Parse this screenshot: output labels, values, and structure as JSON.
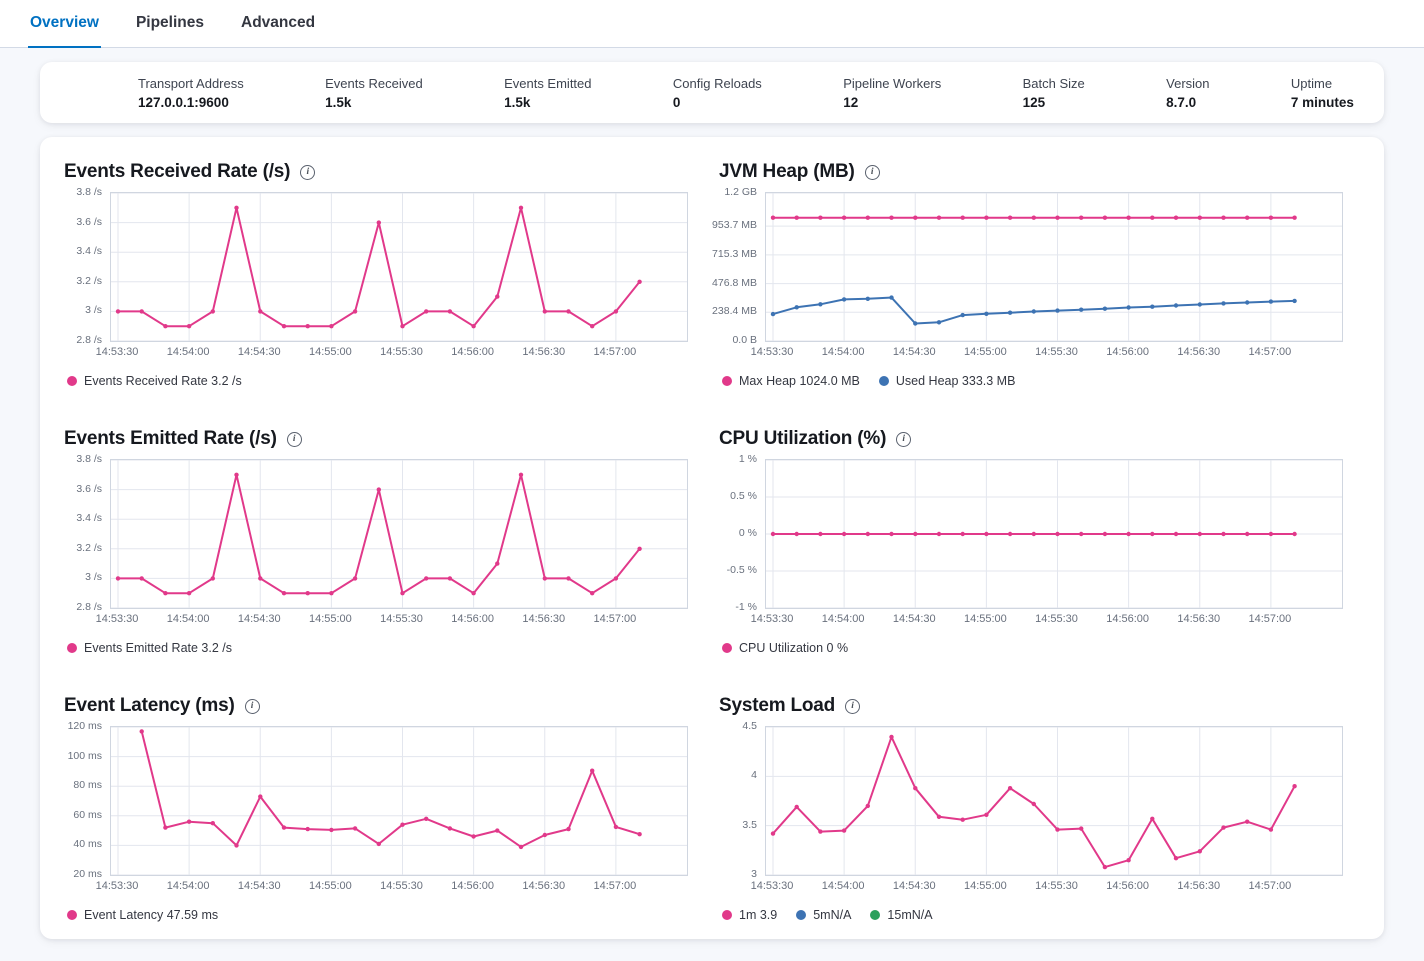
{
  "tabs": [
    {
      "label": "Overview",
      "active": true
    },
    {
      "label": "Pipelines",
      "active": false
    },
    {
      "label": "Advanced",
      "active": false
    }
  ],
  "stats": [
    {
      "label": "Transport Address",
      "value": "127.0.0.1:9600"
    },
    {
      "label": "Events Received",
      "value": "1.5k"
    },
    {
      "label": "Events Emitted",
      "value": "1.5k"
    },
    {
      "label": "Config Reloads",
      "value": "0"
    },
    {
      "label": "Pipeline Workers",
      "value": "12"
    },
    {
      "label": "Batch Size",
      "value": "125"
    },
    {
      "label": "Version",
      "value": "8.7.0"
    },
    {
      "label": "Uptime",
      "value": "7 minutes"
    }
  ],
  "icons": {
    "info": "i"
  },
  "colors": {
    "accent_pink": "#e1398a",
    "series_blue": "#3d73b3",
    "series_green": "#2aa05c",
    "tab_active": "#0071c2",
    "gridline": "#e3e6ee",
    "plot_border": "#d0d6e0"
  },
  "chart_data": [
    {
      "type": "line",
      "title": "Events Received Rate (/s)",
      "ylim": [
        2.8,
        3.8
      ],
      "y_ticks": [
        {
          "value": 2.8,
          "label": "2.8 /s"
        },
        {
          "value": 3.0,
          "label": "3 /s"
        },
        {
          "value": 3.2,
          "label": "3.2 /s"
        },
        {
          "value": 3.4,
          "label": "3.4 /s"
        },
        {
          "value": 3.6,
          "label": "3.6 /s"
        },
        {
          "value": 3.8,
          "label": "3.8 /s"
        }
      ],
      "x_domain_seconds": [
        0,
        240
      ],
      "x_tick_seconds": [
        0,
        30,
        60,
        90,
        120,
        150,
        180,
        210
      ],
      "x_tick_labels": [
        "14:53:30",
        "14:54:00",
        "14:54:30",
        "14:55:00",
        "14:55:30",
        "14:56:00",
        "14:56:30",
        "14:57:00"
      ],
      "series": [
        {
          "name": "Events Received Rate",
          "color": "#e1398a",
          "x_seconds": [
            0,
            10,
            20,
            30,
            40,
            50,
            60,
            70,
            80,
            90,
            100,
            110,
            120,
            130,
            140,
            150,
            160,
            170,
            180,
            190,
            200,
            210,
            220
          ],
          "values": [
            3,
            3,
            2.9,
            2.9,
            3,
            3.7,
            3,
            2.9,
            2.9,
            2.9,
            3,
            3.6,
            2.9,
            3,
            3,
            2.9,
            3.1,
            3.7,
            3,
            3,
            2.9,
            3,
            3.2
          ]
        }
      ],
      "legend": [
        {
          "label": "Events Received Rate 3.2 /s",
          "color": "#e1398a"
        }
      ]
    },
    {
      "type": "line",
      "title": "JVM Heap (MB)",
      "ylim": [
        0,
        1228.8
      ],
      "y_ticks": [
        {
          "value": 0,
          "label": "0.0 B"
        },
        {
          "value": 238.4,
          "label": "238.4 MB"
        },
        {
          "value": 476.8,
          "label": "476.8 MB"
        },
        {
          "value": 715.3,
          "label": "715.3 MB"
        },
        {
          "value": 953.7,
          "label": "953.7 MB"
        },
        {
          "value": 1228.8,
          "label": "1.2 GB"
        }
      ],
      "x_domain_seconds": [
        0,
        240
      ],
      "x_tick_seconds": [
        0,
        30,
        60,
        90,
        120,
        150,
        180,
        210
      ],
      "x_tick_labels": [
        "14:53:30",
        "14:54:00",
        "14:54:30",
        "14:55:00",
        "14:55:30",
        "14:56:00",
        "14:56:30",
        "14:57:00"
      ],
      "series": [
        {
          "name": "Max Heap",
          "color": "#e1398a",
          "x_seconds": [
            0,
            10,
            20,
            30,
            40,
            50,
            60,
            70,
            80,
            90,
            100,
            110,
            120,
            130,
            140,
            150,
            160,
            170,
            180,
            190,
            200,
            210,
            220
          ],
          "values": 1024
        },
        {
          "name": "Used Heap",
          "color": "#3d73b3",
          "x_seconds": [
            0,
            10,
            20,
            30,
            40,
            50,
            60,
            70,
            80,
            90,
            100,
            110,
            120,
            130,
            140,
            150,
            160,
            170,
            180,
            190,
            200,
            210,
            220
          ],
          "values": [
            223,
            280,
            305,
            345,
            350,
            360,
            145,
            155,
            215,
            226,
            235,
            245,
            252,
            260,
            268,
            278,
            285,
            295,
            303,
            312,
            320,
            327,
            333
          ]
        }
      ],
      "legend": [
        {
          "label": "Max Heap 1024.0 MB",
          "color": "#e1398a"
        },
        {
          "label": "Used Heap 333.3 MB",
          "color": "#3d73b3"
        }
      ]
    },
    {
      "type": "line",
      "title": "Events Emitted Rate (/s)",
      "ylim": [
        2.8,
        3.8
      ],
      "y_ticks": [
        {
          "value": 2.8,
          "label": "2.8 /s"
        },
        {
          "value": 3.0,
          "label": "3 /s"
        },
        {
          "value": 3.2,
          "label": "3.2 /s"
        },
        {
          "value": 3.4,
          "label": "3.4 /s"
        },
        {
          "value": 3.6,
          "label": "3.6 /s"
        },
        {
          "value": 3.8,
          "label": "3.8 /s"
        }
      ],
      "x_domain_seconds": [
        0,
        240
      ],
      "x_tick_seconds": [
        0,
        30,
        60,
        90,
        120,
        150,
        180,
        210
      ],
      "x_tick_labels": [
        "14:53:30",
        "14:54:00",
        "14:54:30",
        "14:55:00",
        "14:55:30",
        "14:56:00",
        "14:56:30",
        "14:57:00"
      ],
      "series": [
        {
          "name": "Events Emitted Rate",
          "color": "#e1398a",
          "x_seconds": [
            0,
            10,
            20,
            30,
            40,
            50,
            60,
            70,
            80,
            90,
            100,
            110,
            120,
            130,
            140,
            150,
            160,
            170,
            180,
            190,
            200,
            210,
            220
          ],
          "values": [
            3,
            3,
            2.9,
            2.9,
            3,
            3.7,
            3,
            2.9,
            2.9,
            2.9,
            3,
            3.6,
            2.9,
            3,
            3,
            2.9,
            3.1,
            3.7,
            3,
            3,
            2.9,
            3,
            3.2
          ]
        }
      ],
      "legend": [
        {
          "label": "Events Emitted Rate 3.2 /s",
          "color": "#e1398a"
        }
      ]
    },
    {
      "type": "line",
      "title": "CPU Utilization (%)",
      "ylim": [
        -1,
        1
      ],
      "y_ticks": [
        {
          "value": -1,
          "label": "-1 %"
        },
        {
          "value": -0.5,
          "label": "-0.5 %"
        },
        {
          "value": 0,
          "label": "0 %"
        },
        {
          "value": 0.5,
          "label": "0.5 %"
        },
        {
          "value": 1,
          "label": "1 %"
        }
      ],
      "x_domain_seconds": [
        0,
        240
      ],
      "x_tick_seconds": [
        0,
        30,
        60,
        90,
        120,
        150,
        180,
        210
      ],
      "x_tick_labels": [
        "14:53:30",
        "14:54:00",
        "14:54:30",
        "14:55:00",
        "14:55:30",
        "14:56:00",
        "14:56:30",
        "14:57:00"
      ],
      "series": [
        {
          "name": "CPU Utilization",
          "color": "#e1398a",
          "x_seconds": [
            0,
            10,
            20,
            30,
            40,
            50,
            60,
            70,
            80,
            90,
            100,
            110,
            120,
            130,
            140,
            150,
            160,
            170,
            180,
            190,
            200,
            210,
            220
          ],
          "values": 0
        }
      ],
      "legend": [
        {
          "label": "CPU Utilization 0 %",
          "color": "#e1398a"
        }
      ]
    },
    {
      "type": "line",
      "title": "Event Latency (ms)",
      "ylim": [
        20,
        120
      ],
      "y_ticks": [
        {
          "value": 20,
          "label": "20 ms"
        },
        {
          "value": 40,
          "label": "40 ms"
        },
        {
          "value": 60,
          "label": "60 ms"
        },
        {
          "value": 80,
          "label": "80 ms"
        },
        {
          "value": 100,
          "label": "100 ms"
        },
        {
          "value": 120,
          "label": "120 ms"
        }
      ],
      "x_domain_seconds": [
        0,
        240
      ],
      "x_tick_seconds": [
        0,
        30,
        60,
        90,
        120,
        150,
        180,
        210
      ],
      "x_tick_labels": [
        "14:53:30",
        "14:54:00",
        "14:54:30",
        "14:55:00",
        "14:55:30",
        "14:56:00",
        "14:56:30",
        "14:57:00"
      ],
      "series": [
        {
          "name": "Event Latency",
          "color": "#e1398a",
          "x_seconds": [
            10,
            20,
            30,
            40,
            50,
            60,
            70,
            80,
            90,
            100,
            110,
            120,
            130,
            140,
            150,
            160,
            170,
            180,
            190,
            200,
            210,
            220
          ],
          "values": [
            117,
            52,
            56,
            55,
            40,
            73,
            52,
            51,
            50.5,
            51.5,
            41,
            54,
            58,
            51.5,
            46,
            50,
            39,
            47,
            51,
            90.5,
            52.5,
            47.59
          ]
        }
      ],
      "legend": [
        {
          "label": "Event Latency 47.59 ms",
          "color": "#e1398a"
        }
      ]
    },
    {
      "type": "line",
      "title": "System Load",
      "ylim": [
        3,
        4.5
      ],
      "y_ticks": [
        {
          "value": 3,
          "label": "3"
        },
        {
          "value": 3.5,
          "label": "3.5"
        },
        {
          "value": 4,
          "label": "4"
        },
        {
          "value": 4.5,
          "label": "4.5"
        }
      ],
      "x_domain_seconds": [
        0,
        240
      ],
      "x_tick_seconds": [
        0,
        30,
        60,
        90,
        120,
        150,
        180,
        210
      ],
      "x_tick_labels": [
        "14:53:30",
        "14:54:00",
        "14:54:30",
        "14:55:00",
        "14:55:30",
        "14:56:00",
        "14:56:30",
        "14:57:00"
      ],
      "series": [
        {
          "name": "1m",
          "color": "#e1398a",
          "x_seconds": [
            0,
            10,
            20,
            30,
            40,
            50,
            60,
            70,
            80,
            90,
            100,
            110,
            120,
            130,
            140,
            150,
            160,
            170,
            180,
            190,
            200,
            210,
            220
          ],
          "values": [
            3.42,
            3.69,
            3.44,
            3.45,
            3.7,
            4.4,
            3.88,
            3.59,
            3.56,
            3.61,
            3.88,
            3.72,
            3.46,
            3.47,
            3.08,
            3.15,
            3.57,
            3.17,
            3.24,
            3.48,
            3.54,
            3.46,
            3.9
          ]
        }
      ],
      "legend": [
        {
          "label": "1m 3.9",
          "color": "#e1398a"
        },
        {
          "label": "5mN/A",
          "color": "#3d73b3"
        },
        {
          "label": "15mN/A",
          "color": "#2aa05c"
        }
      ]
    }
  ]
}
